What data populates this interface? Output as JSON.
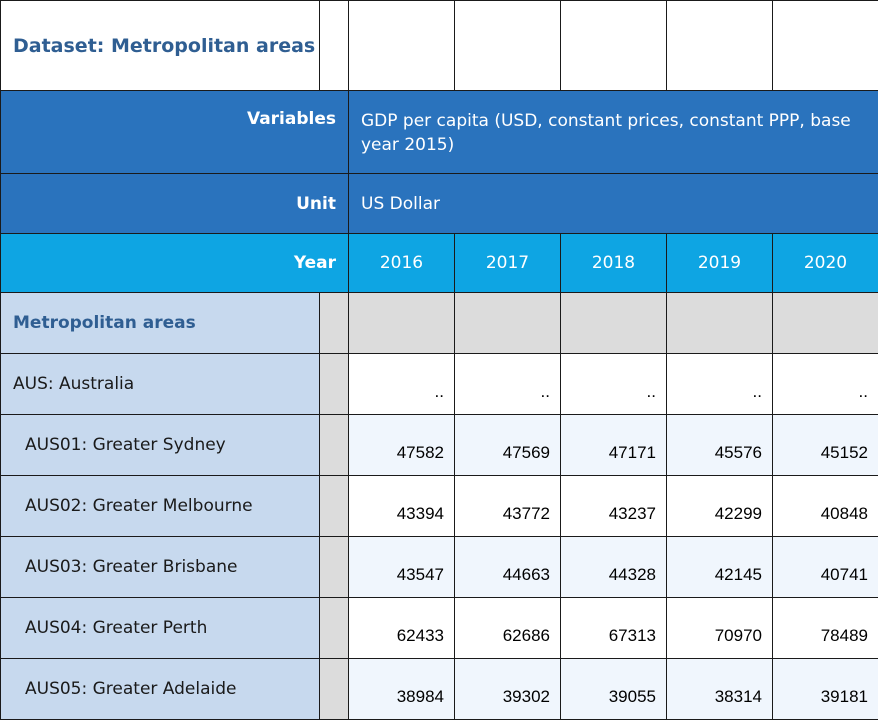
{
  "dataset": {
    "title": "Dataset: Metropolitan areas"
  },
  "header": {
    "variables_label": "Variables",
    "variables_value": "GDP per capita (USD, constant prices, constant PPP, base year 2015)",
    "unit_label": "Unit",
    "unit_value": "US Dollar",
    "year_label": "Year",
    "years": [
      "2016",
      "2017",
      "2018",
      "2019",
      "2020"
    ]
  },
  "section": {
    "label": "Metropolitan areas"
  },
  "rows": [
    {
      "label": "AUS: Australia",
      "values": [
        "..",
        "..",
        "..",
        "..",
        ".."
      ]
    },
    {
      "label": "AUS01: Greater Sydney",
      "values": [
        "47582",
        "47569",
        "47171",
        "45576",
        "45152"
      ]
    },
    {
      "label": "AUS02: Greater Melbourne",
      "values": [
        "43394",
        "43772",
        "43237",
        "42299",
        "40848"
      ]
    },
    {
      "label": "AUS03: Greater Brisbane",
      "values": [
        "43547",
        "44663",
        "44328",
        "42145",
        "40741"
      ]
    },
    {
      "label": "AUS04: Greater Perth",
      "values": [
        "62433",
        "62686",
        "67313",
        "70970",
        "78489"
      ]
    },
    {
      "label": "AUS05: Greater Adelaide",
      "values": [
        "38984",
        "39302",
        "39055",
        "38314",
        "39181"
      ]
    }
  ],
  "colors": {
    "title_blue": "#2f5e92",
    "header_dark": "#2a73bd",
    "header_year": "#0ea5e3",
    "row_label_bg": "#c7d9ee",
    "grey": "#dcdcdc",
    "pale": "#f0f6fd"
  }
}
